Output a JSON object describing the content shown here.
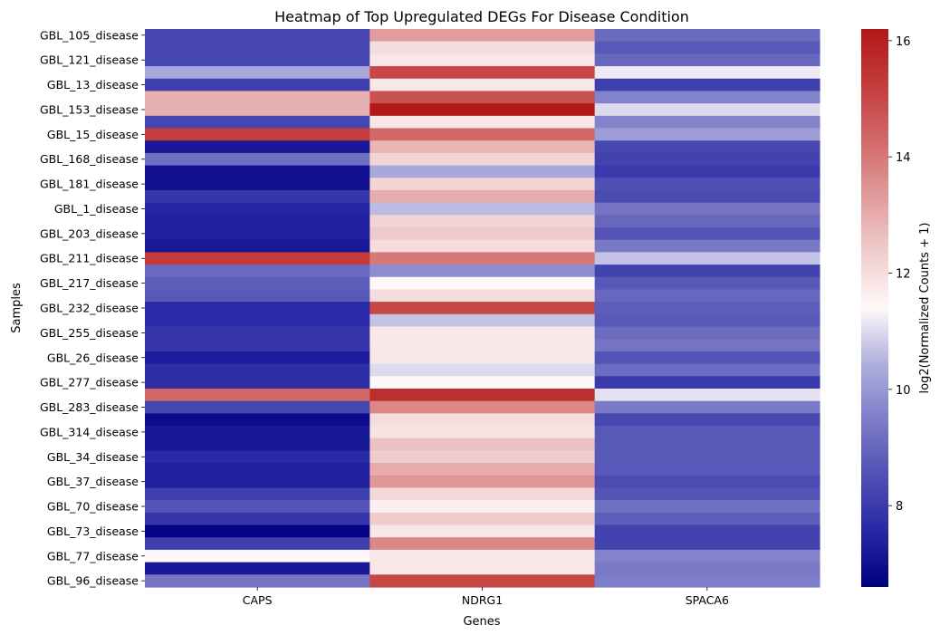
{
  "chart_data": {
    "type": "heatmap",
    "title": "Heatmap of Top Upregulated DEGs For Disease Condition",
    "xlabel": "Genes",
    "ylabel": "Samples",
    "columns": [
      "CAPS",
      "NDRG1",
      "SPACA6"
    ],
    "row_tick_labels": [
      "GBL_105_disease",
      "GBL_121_disease",
      "GBL_13_disease",
      "GBL_153_disease",
      "GBL_15_disease",
      "GBL_168_disease",
      "GBL_181_disease",
      "GBL_1_disease",
      "GBL_203_disease",
      "GBL_211_disease",
      "GBL_217_disease",
      "GBL_232_disease",
      "GBL_255_disease",
      "GBL_26_disease",
      "GBL_277_disease",
      "GBL_283_disease",
      "GBL_314_disease",
      "GBL_34_disease",
      "GBL_37_disease",
      "GBL_70_disease",
      "GBL_73_disease",
      "GBL_77_disease",
      "GBL_96_disease"
    ],
    "row_count": 45,
    "colorbar": {
      "label": "log2(Normalized Counts + 1)",
      "min": 6.6,
      "max": 16.2,
      "center": 11.4,
      "ticks": [
        8,
        10,
        12,
        14,
        16
      ],
      "colormap": "seismic-like (navy - white - dark red)"
    },
    "values": [
      [
        8.3,
        13.3,
        9.1
      ],
      [
        8.3,
        12.0,
        8.7
      ],
      [
        8.3,
        11.8,
        9.0
      ],
      [
        10.3,
        15.0,
        11.2
      ],
      [
        8.1,
        11.8,
        8.1
      ],
      [
        12.9,
        14.8,
        9.6
      ],
      [
        12.9,
        16.2,
        11.0
      ],
      [
        8.3,
        11.8,
        9.6
      ],
      [
        15.2,
        14.3,
        10.1
      ],
      [
        7.2,
        12.8,
        8.3
      ],
      [
        9.2,
        12.2,
        8.2
      ],
      [
        7.0,
        10.3,
        8.0
      ],
      [
        7.0,
        12.2,
        8.5
      ],
      [
        7.9,
        13.0,
        8.4
      ],
      [
        7.5,
        10.6,
        9.3
      ],
      [
        7.4,
        12.2,
        9.0
      ],
      [
        7.4,
        12.4,
        8.6
      ],
      [
        7.2,
        12.0,
        9.4
      ],
      [
        15.3,
        14.0,
        10.7
      ],
      [
        9.1,
        9.8,
        8.2
      ],
      [
        8.8,
        11.4,
        8.7
      ],
      [
        8.7,
        12.0,
        9.0
      ],
      [
        7.6,
        15.0,
        8.8
      ],
      [
        7.6,
        10.7,
        8.7
      ],
      [
        7.9,
        11.8,
        9.1
      ],
      [
        7.9,
        11.8,
        9.3
      ],
      [
        7.3,
        11.8,
        8.6
      ],
      [
        7.7,
        11.0,
        9.1
      ],
      [
        7.7,
        11.4,
        8.0
      ],
      [
        14.3,
        15.6,
        11.1
      ],
      [
        8.3,
        13.7,
        9.4
      ],
      [
        6.9,
        12.0,
        8.3
      ],
      [
        7.2,
        11.9,
        8.7
      ],
      [
        7.2,
        12.6,
        8.7
      ],
      [
        7.6,
        12.4,
        8.7
      ],
      [
        7.4,
        13.0,
        8.7
      ],
      [
        7.4,
        13.4,
        8.4
      ],
      [
        8.1,
        12.1,
        8.6
      ],
      [
        8.6,
        11.6,
        9.2
      ],
      [
        7.9,
        12.4,
        8.8
      ],
      [
        6.7,
        11.8,
        8.2
      ],
      [
        8.1,
        13.7,
        8.2
      ],
      [
        11.4,
        11.8,
        9.6
      ],
      [
        7.2,
        11.8,
        9.4
      ],
      [
        9.3,
        15.0,
        9.5
      ]
    ]
  }
}
